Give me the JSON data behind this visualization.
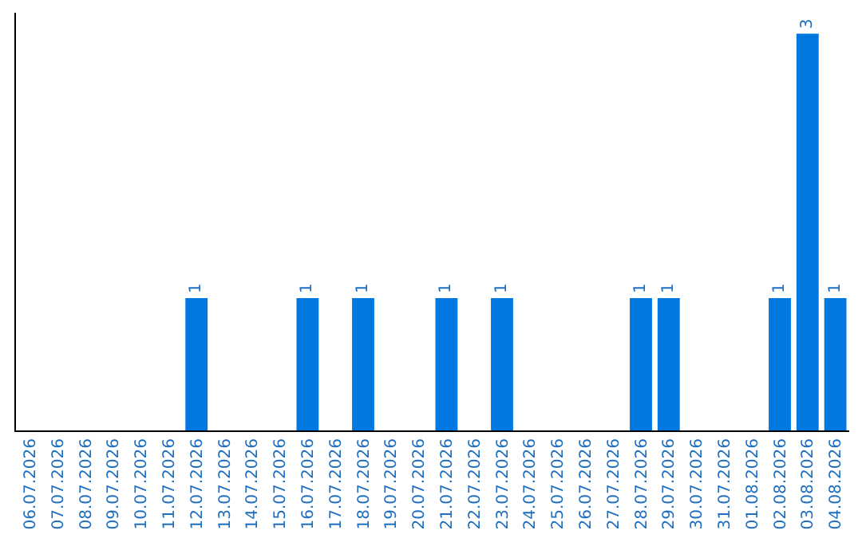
{
  "chart_data": {
    "type": "bar",
    "categories": [
      "06.07.2026",
      "07.07.2026",
      "08.07.2026",
      "09.07.2026",
      "10.07.2026",
      "11.07.2026",
      "12.07.2026",
      "13.07.2026",
      "14.07.2026",
      "15.07.2026",
      "16.07.2026",
      "17.07.2026",
      "18.07.2026",
      "19.07.2026",
      "20.07.2026",
      "21.07.2026",
      "22.07.2026",
      "23.07.2026",
      "24.07.2026",
      "25.07.2026",
      "26.07.2026",
      "27.07.2026",
      "28.07.2026",
      "29.07.2026",
      "30.07.2026",
      "31.07.2026",
      "01.08.2026",
      "02.08.2026",
      "03.08.2026",
      "04.08.2026"
    ],
    "values": [
      0,
      0,
      0,
      0,
      0,
      0,
      1,
      0,
      0,
      0,
      1,
      0,
      1,
      0,
      0,
      1,
      0,
      1,
      0,
      0,
      0,
      0,
      1,
      1,
      0,
      0,
      0,
      1,
      3,
      1
    ],
    "value_labels": [
      null,
      null,
      null,
      null,
      null,
      null,
      "1",
      null,
      null,
      null,
      "1",
      null,
      "1",
      null,
      null,
      "1",
      null,
      "1",
      null,
      null,
      null,
      null,
      "1",
      "1",
      null,
      null,
      null,
      "1",
      "3",
      "1"
    ],
    "color": "#0078e0",
    "grid": false,
    "legend": false,
    "tick_labels": "x"
  }
}
